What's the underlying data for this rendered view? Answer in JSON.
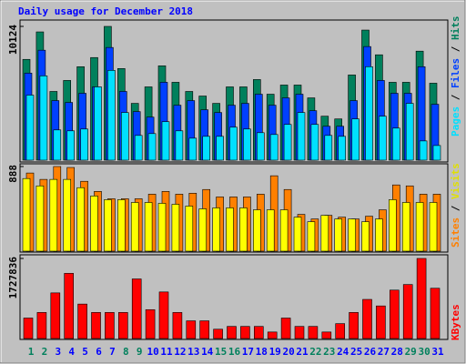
{
  "title": "Daily usage for December 2018",
  "categories": [
    "1",
    "2",
    "3",
    "4",
    "5",
    "6",
    "7",
    "8",
    "9",
    "10",
    "11",
    "12",
    "13",
    "14",
    "15",
    "16",
    "17",
    "18",
    "19",
    "20",
    "21",
    "22",
    "23",
    "24",
    "25",
    "26",
    "27",
    "28",
    "29",
    "30",
    "31"
  ],
  "category_colors": [
    "#00805c",
    "#00805c",
    "#0000ff",
    "#0000ff",
    "#0000ff",
    "#0000ff",
    "#0000ff",
    "#00805c",
    "#00805c",
    "#0000ff",
    "#0000ff",
    "#0000ff",
    "#0000ff",
    "#0000ff",
    "#00805c",
    "#00805c",
    "#0000ff",
    "#0000ff",
    "#0000ff",
    "#0000ff",
    "#0000ff",
    "#00805c",
    "#00805c",
    "#0000ff",
    "#0000ff",
    "#0000ff",
    "#0000ff",
    "#0000ff",
    "#00805c",
    "#00805c",
    "#0000ff"
  ],
  "chart_data": [
    {
      "type": "bar",
      "legend_separator": " / ",
      "ylim": [
        0,
        10124
      ],
      "yticks": [
        10124
      ],
      "series": [
        {
          "name": "Pages",
          "color": "#00e0ff",
          "values": [
            4923,
            6379,
            2288,
            2219,
            2358,
            5547,
            6795,
            3606,
            1872,
            2011,
            2912,
            2219,
            1664,
            1803,
            1803,
            2496,
            2358,
            2080,
            1942,
            2704,
            3606,
            2704,
            1872,
            1803,
            3120,
            7073,
            3328,
            2427,
            4299,
            1456,
            1109
          ]
        },
        {
          "name": "Files",
          "color": "#0040ff",
          "values": [
            6587,
            8321,
            4507,
            4368,
            5062,
            5547,
            8529,
            5201,
            3675,
            3259,
            5894,
            4160,
            4507,
            3814,
            3606,
            4160,
            4299,
            4992,
            4160,
            4715,
            4992,
            3744,
            2566,
            2566,
            4507,
            8598,
            6033,
            5062,
            5062,
            7073,
            4230
          ]
        },
        {
          "name": "Hits",
          "color": "#00805c",
          "values": [
            7627,
            9708,
            5201,
            6033,
            7073,
            7766,
            10124,
            6934,
            4299,
            5547,
            7142,
            5894,
            5201,
            4854,
            4299,
            5547,
            5547,
            6102,
            4992,
            5686,
            5686,
            4715,
            3328,
            3120,
            6449,
            9846,
            7974,
            5894,
            5894,
            8251,
            5825
          ]
        }
      ]
    },
    {
      "type": "bar",
      "legend_separator": " / ",
      "ylim": [
        0,
        888
      ],
      "yticks": [
        888
      ],
      "series": [
        {
          "name": "Sites",
          "color": "#ff8000",
          "values": [
            820,
            753,
            888,
            878,
            733,
            627,
            550,
            550,
            550,
            598,
            627,
            598,
            608,
            647,
            569,
            569,
            569,
            598,
            791,
            647,
            386,
            338,
            376,
            357,
            338,
            367,
            434,
            695,
            685,
            598,
            598
          ]
        },
        {
          "name": "Visits",
          "color": "#ffff00",
          "values": [
            762,
            685,
            753,
            753,
            666,
            579,
            540,
            540,
            511,
            511,
            502,
            492,
            473,
            444,
            454,
            454,
            454,
            434,
            434,
            434,
            357,
            309,
            376,
            338,
            338,
            309,
            338,
            540,
            511,
            511,
            511
          ]
        }
      ]
    },
    {
      "type": "bar",
      "ylim": [
        0,
        1727836
      ],
      "yticks": [
        1727836
      ],
      "series": [
        {
          "name": "KBytes",
          "color": "#ff0000",
          "values": [
            442002,
            562548,
            984459,
            1406370,
            743367,
            562548,
            562548,
            562548,
            1285824,
            622821,
            1004550,
            562548,
            381729,
            381729,
            200910,
            261183,
            261183,
            261183,
            140637,
            442002,
            261183,
            261183,
            140637,
            321456,
            562548,
            843822,
            703185,
            1044732,
            1165278,
            1727836,
            1084914
          ]
        }
      ]
    }
  ]
}
